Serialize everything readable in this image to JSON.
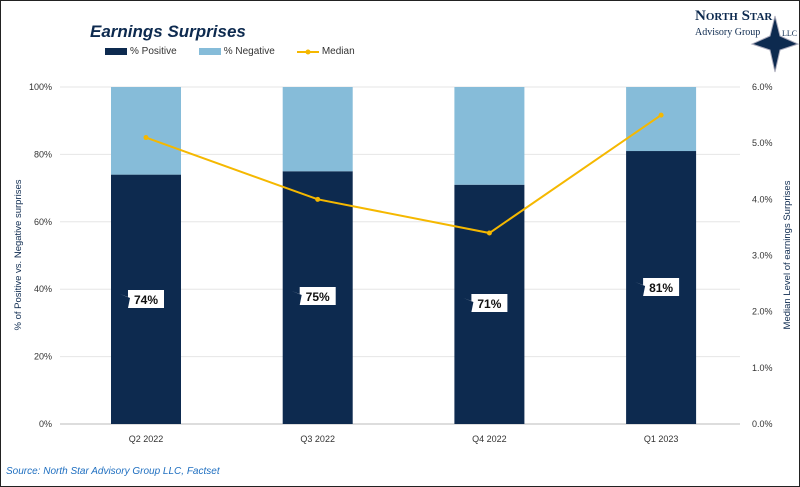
{
  "logo": {
    "line1": "North Star",
    "line2": "Advisory Group",
    "suffix": "LLC"
  },
  "source": "Source: North Star Advisory Group LLC, Factset",
  "colors": {
    "positive": "#0d2a4f",
    "negative": "#86bcd9",
    "median": "#f5b800"
  },
  "chart_data": {
    "type": "bar",
    "title": "Earnings Surprises",
    "stacked": true,
    "categories": [
      "Q2 2022",
      "Q3 2022",
      "Q4 2022",
      "Q1 2023"
    ],
    "series": [
      {
        "name": "% Positive",
        "values": [
          74,
          75,
          71,
          81
        ],
        "axis": "left",
        "labels": [
          "74%",
          "75%",
          "71%",
          "81%"
        ]
      },
      {
        "name": "% Negative",
        "values": [
          26,
          25,
          29,
          19
        ],
        "axis": "left"
      },
      {
        "name": "Median",
        "type": "line",
        "values": [
          5.1,
          4.0,
          3.4,
          5.5
        ],
        "axis": "right"
      }
    ],
    "ylabel": "% of Positive vs. Negative surprises",
    "y2label": "Median Level of earnings Surprises",
    "ylim": [
      0,
      100
    ],
    "y2lim": [
      0,
      6
    ],
    "yticks": [
      "0%",
      "20%",
      "40%",
      "60%",
      "80%",
      "100%"
    ],
    "y2ticks": [
      "0.0%",
      "1.0%",
      "2.0%",
      "3.0%",
      "4.0%",
      "5.0%",
      "6.0%"
    ],
    "grid": true,
    "legend": "top"
  }
}
